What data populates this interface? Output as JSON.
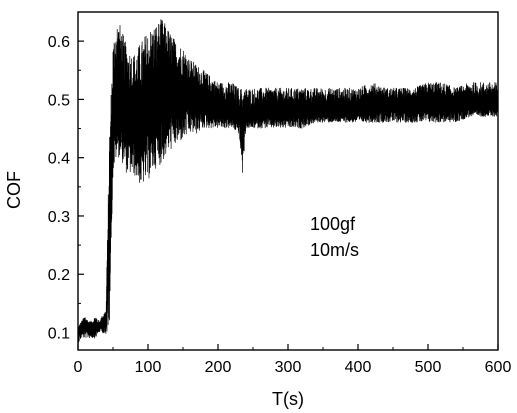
{
  "chart_data": {
    "type": "line",
    "title": "",
    "xlabel": "T(s)",
    "ylabel": "COF",
    "xlim": [
      0,
      600
    ],
    "ylim": [
      0.07,
      0.65
    ],
    "x_ticks": [
      0,
      100,
      200,
      300,
      400,
      500,
      600
    ],
    "y_ticks": [
      0.1,
      0.2,
      0.3,
      0.4,
      0.5,
      0.6
    ],
    "x_tick_labels": [
      "0",
      "100",
      "200",
      "300",
      "400",
      "500",
      "600"
    ],
    "y_tick_labels": [
      "0.1",
      "0.2",
      "0.3",
      "0.4",
      "0.5",
      "0.6"
    ],
    "grid": false,
    "legend": "none",
    "annotations": [
      "100gf",
      "10m/s"
    ],
    "series": [
      {
        "color": "#000000",
        "x": [
          0,
          5,
          10,
          15,
          20,
          25,
          30,
          35,
          40,
          45,
          50,
          55,
          60,
          70,
          80,
          90,
          100,
          110,
          120,
          130,
          140,
          150,
          160,
          170,
          180,
          190,
          200,
          210,
          220,
          230,
          235,
          240,
          250,
          260,
          270,
          280,
          300,
          320,
          340,
          360,
          380,
          400,
          420,
          440,
          460,
          480,
          500,
          520,
          540,
          560,
          580,
          600
        ],
        "y_mean": [
          0.1,
          0.11,
          0.11,
          0.11,
          0.11,
          0.11,
          0.11,
          0.12,
          0.12,
          0.3,
          0.46,
          0.5,
          0.5,
          0.48,
          0.46,
          0.46,
          0.48,
          0.5,
          0.51,
          0.51,
          0.51,
          0.51,
          0.51,
          0.5,
          0.5,
          0.49,
          0.49,
          0.48,
          0.48,
          0.47,
          0.45,
          0.47,
          0.47,
          0.48,
          0.48,
          0.48,
          0.48,
          0.48,
          0.48,
          0.48,
          0.48,
          0.48,
          0.49,
          0.49,
          0.49,
          0.49,
          0.49,
          0.49,
          0.49,
          0.49,
          0.49,
          0.49
        ],
        "y_max": [
          0.11,
          0.12,
          0.13,
          0.12,
          0.12,
          0.13,
          0.12,
          0.13,
          0.14,
          0.45,
          0.6,
          0.64,
          0.63,
          0.59,
          0.58,
          0.6,
          0.62,
          0.63,
          0.64,
          0.62,
          0.6,
          0.59,
          0.57,
          0.56,
          0.55,
          0.54,
          0.53,
          0.53,
          0.53,
          0.52,
          0.52,
          0.52,
          0.52,
          0.52,
          0.52,
          0.52,
          0.52,
          0.52,
          0.52,
          0.52,
          0.52,
          0.52,
          0.53,
          0.52,
          0.52,
          0.52,
          0.53,
          0.53,
          0.52,
          0.53,
          0.53,
          0.53
        ],
        "y_min": [
          0.08,
          0.09,
          0.09,
          0.09,
          0.09,
          0.09,
          0.1,
          0.1,
          0.09,
          0.12,
          0.37,
          0.4,
          0.4,
          0.37,
          0.37,
          0.35,
          0.36,
          0.38,
          0.39,
          0.41,
          0.42,
          0.43,
          0.44,
          0.44,
          0.45,
          0.45,
          0.45,
          0.45,
          0.45,
          0.44,
          0.37,
          0.45,
          0.45,
          0.45,
          0.45,
          0.45,
          0.45,
          0.45,
          0.46,
          0.46,
          0.46,
          0.46,
          0.46,
          0.46,
          0.46,
          0.46,
          0.46,
          0.46,
          0.46,
          0.47,
          0.47,
          0.47
        ]
      }
    ]
  }
}
